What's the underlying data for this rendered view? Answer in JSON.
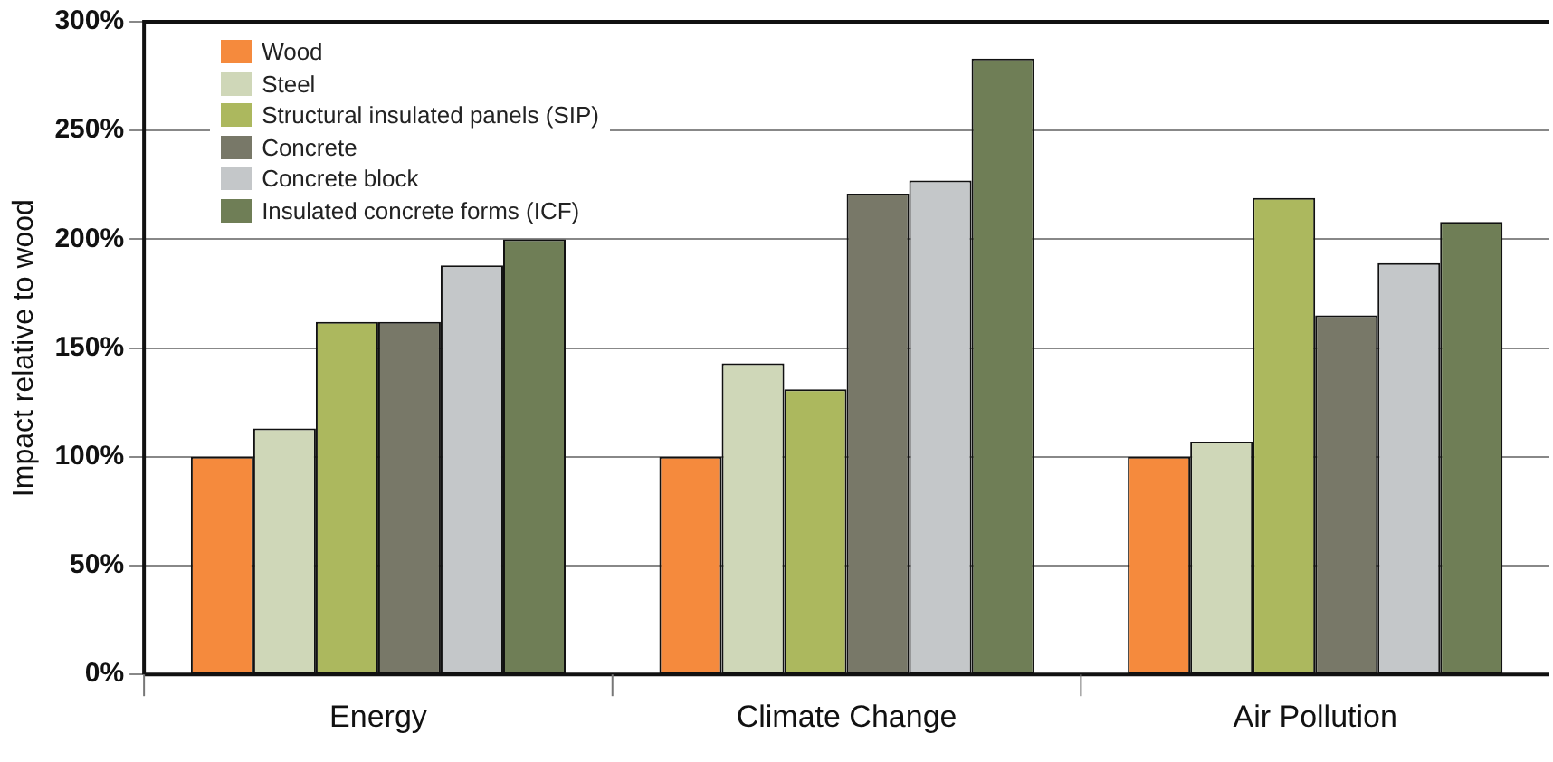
{
  "chart_data": {
    "type": "bar",
    "ylabel": "Impact relative to wood",
    "categories": [
      "Energy",
      "Climate Change",
      "Air Pollution"
    ],
    "series": [
      {
        "name": "Wood",
        "color": "#f58a3d",
        "values": [
          100,
          100,
          100
        ]
      },
      {
        "name": "Steel",
        "color": "#cfd7b8",
        "values": [
          113,
          143,
          107
        ]
      },
      {
        "name": "Structural insulated panels (SIP)",
        "color": "#acb85e",
        "values": [
          162,
          131,
          219
        ]
      },
      {
        "name": "Concrete",
        "color": "#787868",
        "values": [
          162,
          221,
          165
        ]
      },
      {
        "name": "Concrete block",
        "color": "#c4c7c9",
        "values": [
          188,
          227,
          189
        ]
      },
      {
        "name": "Insulated concrete forms (ICF)",
        "color": "#6f7e56",
        "values": [
          200,
          283,
          208
        ]
      }
    ],
    "ylim": [
      0,
      300
    ],
    "yticks": [
      {
        "value": 0,
        "label": "0%"
      },
      {
        "value": 50,
        "label": "50%"
      },
      {
        "value": 100,
        "label": "100%"
      },
      {
        "value": 150,
        "label": "150%"
      },
      {
        "value": 200,
        "label": "200%"
      },
      {
        "value": 250,
        "label": "250%"
      },
      {
        "value": 300,
        "label": "300%"
      }
    ],
    "grid": "y",
    "legend": "top left"
  }
}
